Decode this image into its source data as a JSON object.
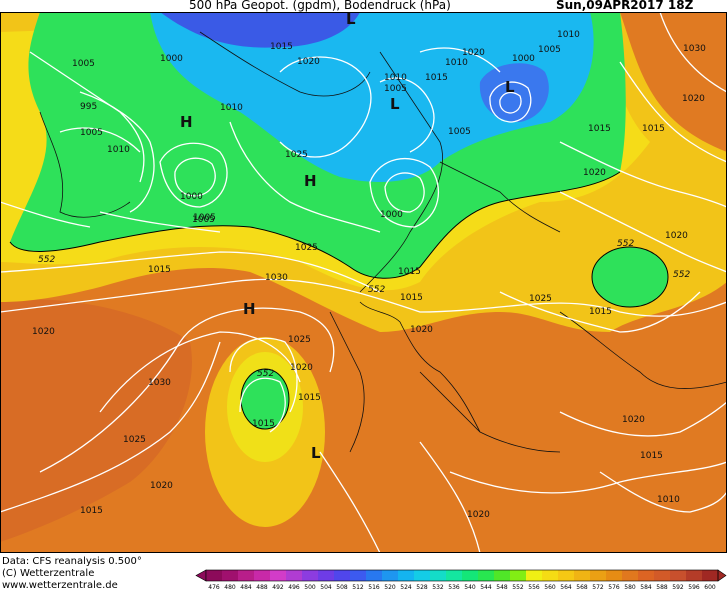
{
  "header": {
    "title": "500 hPa Geopot. (gpdm), Bodendruck (hPa)",
    "date": "Sun,09APR2017 18Z"
  },
  "footer": {
    "data_source": "Data: CFS reanalysis 0.500°",
    "copyright": "(C) Wetterzentrale",
    "website": "www.wetterzentrale.de"
  },
  "legend": {
    "ticks": [
      "476",
      "480",
      "484",
      "488",
      "492",
      "496",
      "500",
      "504",
      "508",
      "512",
      "516",
      "520",
      "524",
      "528",
      "532",
      "536",
      "540",
      "544",
      "548",
      "552",
      "556",
      "560",
      "564",
      "568",
      "572",
      "576",
      "580",
      "584",
      "588",
      "592",
      "596",
      "600"
    ],
    "colors": [
      "#8c0a5a",
      "#a0106e",
      "#b81e8a",
      "#c829a8",
      "#d23cc8",
      "#b03cd2",
      "#8c3ce0",
      "#6e3ce6",
      "#5046ec",
      "#3c5af0",
      "#2878f0",
      "#1e96f0",
      "#14b4f0",
      "#14cce6",
      "#14dcc8",
      "#14e6a0",
      "#14e678",
      "#28e650",
      "#50e628",
      "#82ee14",
      "#f0f014",
      "#f5dc14",
      "#f5c814",
      "#f0b414",
      "#eba014",
      "#e68c14",
      "#e1781e",
      "#dc6423",
      "#d25a28",
      "#c8502d",
      "#b43c28",
      "#a02823"
    ]
  },
  "map": {
    "colors": {
      "orange": "#e07a22",
      "yellow": "#f2d018",
      "green": "#2ee15a",
      "cyan": "#1ab8f0",
      "blue": "#3a5ae6"
    },
    "pressure_labels": [
      "1005",
      "1000",
      "995",
      "1005",
      "1010",
      "1000",
      "1005",
      "1010",
      "1015",
      "1020",
      "1025",
      "1010",
      "1005",
      "1015",
      "1010",
      "1005",
      "1000",
      "1020",
      "1005",
      "1010",
      "1030",
      "1015",
      "1005",
      "1015",
      "1020",
      "1000",
      "1020",
      "1015",
      "1020",
      "1025",
      "1030",
      "1020",
      "1025",
      "1015",
      "1030",
      "1025",
      "1020",
      "1015",
      "1015",
      "1020",
      "1020",
      "1025",
      "1015",
      "1015",
      "1020",
      "1015",
      "1010",
      "1020",
      "1015"
    ],
    "pressure_systems": [
      "L",
      "H",
      "H",
      "L",
      "L",
      "H",
      "L"
    ],
    "geopotential_labels": [
      "552",
      "552",
      "552",
      "552",
      "552"
    ]
  }
}
